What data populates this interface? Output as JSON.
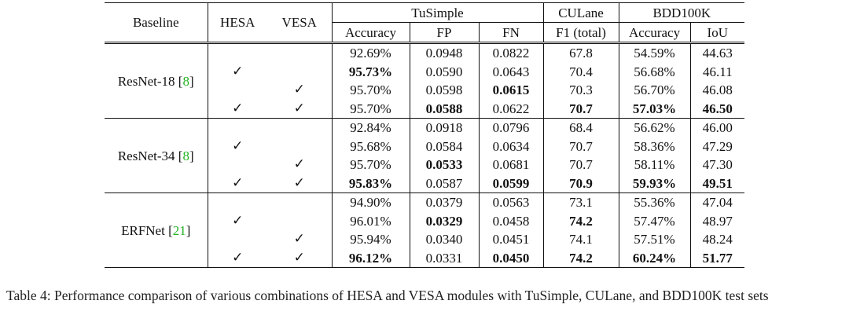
{
  "headers": {
    "baseline": "Baseline",
    "hesa": "HESA",
    "vesa": "VESA",
    "tusimple": "TuSimple",
    "culane": "CULane",
    "bdd": "BDD100K",
    "accuracy": "Accuracy",
    "fp": "FP",
    "fn": "FN",
    "f1": "F1 (total)",
    "bdd_accuracy": "Accuracy",
    "iou": "IoU"
  },
  "check_symbol": "✓",
  "groups": [
    {
      "name": "ResNet-18 [",
      "ref": "8",
      "close": "]",
      "rows": [
        {
          "hesa": "",
          "vesa": "",
          "acc": "92.69%",
          "fp": "0.0948",
          "fn": "0.0822",
          "f1": "67.8",
          "bacc": "54.59%",
          "iou": "44.63"
        },
        {
          "hesa": "✓",
          "vesa": "",
          "acc": "95.73%",
          "fp": "0.0590",
          "fn": "0.0643",
          "f1": "70.4",
          "bacc": "56.68%",
          "iou": "46.11"
        },
        {
          "hesa": "",
          "vesa": "✓",
          "acc": "95.70%",
          "fp": "0.0598",
          "fn": "0.0615",
          "f1": "70.3",
          "bacc": "56.70%",
          "iou": "46.08"
        },
        {
          "hesa": "✓",
          "vesa": "✓",
          "acc": "95.70%",
          "fp": "0.0588",
          "fn": "0.0622",
          "f1": "70.7",
          "bacc": "57.03%",
          "iou": "46.50"
        }
      ]
    },
    {
      "name": "ResNet-34 [",
      "ref": "8",
      "close": "]",
      "rows": [
        {
          "hesa": "",
          "vesa": "",
          "acc": "92.84%",
          "fp": "0.0918",
          "fn": "0.0796",
          "f1": "68.4",
          "bacc": "56.62%",
          "iou": "46.00"
        },
        {
          "hesa": "✓",
          "vesa": "",
          "acc": "95.68%",
          "fp": "0.0584",
          "fn": "0.0634",
          "f1": "70.7",
          "bacc": "58.36%",
          "iou": "47.29"
        },
        {
          "hesa": "",
          "vesa": "✓",
          "acc": "95.70%",
          "fp": "0.0533",
          "fn": "0.0681",
          "f1": "70.7",
          "bacc": "58.11%",
          "iou": "47.30"
        },
        {
          "hesa": "✓",
          "vesa": "✓",
          "acc": "95.83%",
          "fp": "0.0587",
          "fn": "0.0599",
          "f1": "70.9",
          "bacc": "59.93%",
          "iou": "49.51"
        }
      ]
    },
    {
      "name": "ERFNet [",
      "ref": "21",
      "close": "]",
      "rows": [
        {
          "hesa": "",
          "vesa": "",
          "acc": "94.90%",
          "fp": "0.0379",
          "fn": "0.0563",
          "f1": "73.1",
          "bacc": "55.36%",
          "iou": "47.04"
        },
        {
          "hesa": "✓",
          "vesa": "",
          "acc": "96.01%",
          "fp": "0.0329",
          "fn": "0.0458",
          "f1": "74.2",
          "bacc": "57.47%",
          "iou": "48.97"
        },
        {
          "hesa": "",
          "vesa": "✓",
          "acc": "95.94%",
          "fp": "0.0340",
          "fn": "0.0451",
          "f1": "74.1",
          "bacc": "57.51%",
          "iou": "48.24"
        },
        {
          "hesa": "✓",
          "vesa": "✓",
          "acc": "96.12%",
          "fp": "0.0331",
          "fn": "0.0450",
          "f1": "74.2",
          "bacc": "60.24%",
          "iou": "51.77"
        }
      ]
    }
  ],
  "caption": "Table 4: Performance comparison of various combinations of HESA and VESA modules with TuSimple, CULane, and BDD100K test sets",
  "colors": {
    "text": "#111111",
    "ref_link": "#22b422"
  }
}
